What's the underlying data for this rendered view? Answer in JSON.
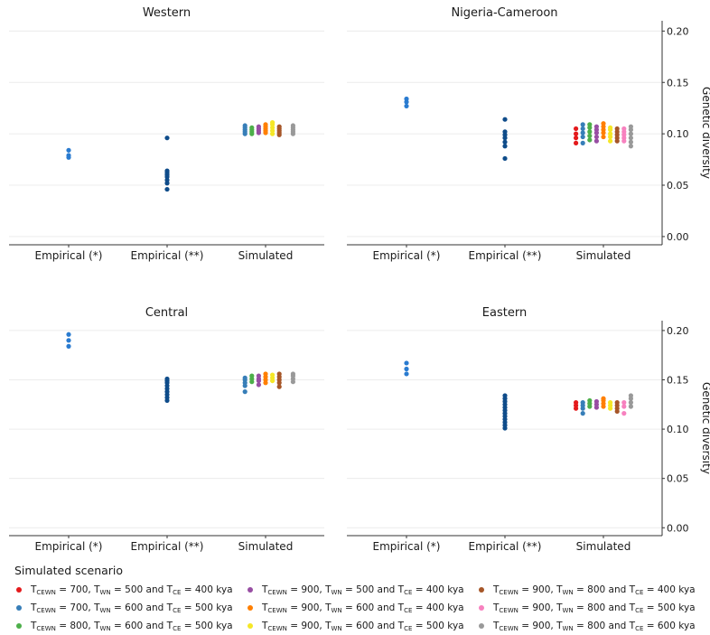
{
  "chart_data": {
    "type": "scatter",
    "y_axis_label": "Genetic diversity",
    "y_ticks": [
      "0.00",
      "0.05",
      "0.10",
      "0.15",
      "0.20"
    ],
    "ylim": [
      -0.008,
      0.21
    ],
    "categories": [
      "Empirical (*)",
      "Empirical (**)",
      "Simulated"
    ],
    "colors": {
      "empirical_star": "#2a7bd0",
      "empirical_double_star": "#0f4c8a",
      "scenarios": [
        "#e41a1c",
        "#377eb8",
        "#4daf4a",
        "#984ea3",
        "#ff7f00",
        "#f5e727",
        "#a65628",
        "#f781bf",
        "#999999"
      ]
    },
    "panels": [
      {
        "title": "Western",
        "show_y_axis": false,
        "empirical_star": [
          0.077,
          0.079,
          0.084
        ],
        "empirical_double_star": [
          0.046,
          0.052,
          0.055,
          0.058,
          0.06,
          0.062,
          0.064,
          0.096
        ],
        "simulated": [
          [],
          [
            0.1,
            0.102,
            0.104,
            0.106,
            0.108
          ],
          [
            0.1,
            0.102,
            0.104,
            0.106
          ],
          [
            0.101,
            0.103,
            0.105,
            0.107
          ],
          [
            0.101,
            0.103,
            0.105,
            0.107,
            0.109
          ],
          [
            0.1,
            0.103,
            0.106,
            0.109,
            0.111
          ],
          [
            0.099,
            0.101,
            0.103,
            0.105,
            0.107
          ],
          [],
          [
            0.1,
            0.102,
            0.104,
            0.106,
            0.108
          ]
        ]
      },
      {
        "title": "Nigeria-Cameroon",
        "show_y_axis": true,
        "empirical_star": [
          0.127,
          0.131,
          0.134
        ],
        "empirical_double_star": [
          0.076,
          0.088,
          0.092,
          0.096,
          0.099,
          0.102,
          0.114
        ],
        "simulated": [
          [
            0.091,
            0.096,
            0.1,
            0.105
          ],
          [
            0.091,
            0.097,
            0.101,
            0.105,
            0.109
          ],
          [
            0.094,
            0.098,
            0.102,
            0.106,
            0.109
          ],
          [
            0.093,
            0.097,
            0.101,
            0.104,
            0.107
          ],
          [
            0.097,
            0.101,
            0.104,
            0.107,
            0.11
          ],
          [
            0.093,
            0.097,
            0.1,
            0.104,
            0.106
          ],
          [
            0.093,
            0.096,
            0.099,
            0.102,
            0.105
          ],
          [
            0.093,
            0.096,
            0.099,
            0.102,
            0.105
          ],
          [
            0.088,
            0.092,
            0.096,
            0.1,
            0.104,
            0.107
          ]
        ]
      },
      {
        "title": "Central",
        "show_y_axis": false,
        "empirical_star": [
          0.184,
          0.19,
          0.196
        ],
        "empirical_double_star": [
          0.129,
          0.132,
          0.135,
          0.138,
          0.141,
          0.144,
          0.147,
          0.149,
          0.151
        ],
        "simulated": [
          [],
          [
            0.138,
            0.144,
            0.147,
            0.15,
            0.152
          ],
          [
            0.148,
            0.151,
            0.154
          ],
          [
            0.145,
            0.149,
            0.151,
            0.154
          ],
          [
            0.147,
            0.15,
            0.153,
            0.156
          ],
          [
            0.149,
            0.152,
            0.155
          ],
          [
            0.143,
            0.147,
            0.15,
            0.153,
            0.156
          ],
          [],
          [
            0.148,
            0.151,
            0.154,
            0.156
          ]
        ]
      },
      {
        "title": "Eastern",
        "show_y_axis": true,
        "empirical_star": [
          0.156,
          0.161,
          0.167
        ],
        "empirical_double_star": [
          0.101,
          0.104,
          0.107,
          0.11,
          0.113,
          0.116,
          0.119,
          0.122,
          0.125,
          0.128,
          0.131,
          0.134
        ],
        "simulated": [
          [
            0.121,
            0.124,
            0.127
          ],
          [
            0.116,
            0.121,
            0.124,
            0.127
          ],
          [
            0.123,
            0.126,
            0.129
          ],
          [
            0.122,
            0.125,
            0.128
          ],
          [
            0.123,
            0.126,
            0.129,
            0.131
          ],
          [
            0.121,
            0.124,
            0.127
          ],
          [
            0.118,
            0.121,
            0.124,
            0.127
          ],
          [
            0.116,
            0.123,
            0.127
          ],
          [
            0.123,
            0.127,
            0.131,
            0.134
          ]
        ]
      }
    ]
  },
  "legend": {
    "title": "Simulated scenario",
    "items": [
      {
        "color": "#e41a1c",
        "cewn": "700",
        "wn": "500",
        "ce": "400"
      },
      {
        "color": "#984ea3",
        "cewn": "900",
        "wn": "500",
        "ce": "400"
      },
      {
        "color": "#a65628",
        "cewn": "900",
        "wn": "800",
        "ce": "400"
      },
      {
        "color": "#377eb8",
        "cewn": "700",
        "wn": "600",
        "ce": "500"
      },
      {
        "color": "#ff7f00",
        "cewn": "900",
        "wn": "600",
        "ce": "400"
      },
      {
        "color": "#f781bf",
        "cewn": "900",
        "wn": "800",
        "ce": "500"
      },
      {
        "color": "#4daf4a",
        "cewn": "800",
        "wn": "600",
        "ce": "500"
      },
      {
        "color": "#f5e727",
        "cewn": "900",
        "wn": "600",
        "ce": "500"
      },
      {
        "color": "#999999",
        "cewn": "900",
        "wn": "800",
        "ce": "600"
      }
    ]
  }
}
